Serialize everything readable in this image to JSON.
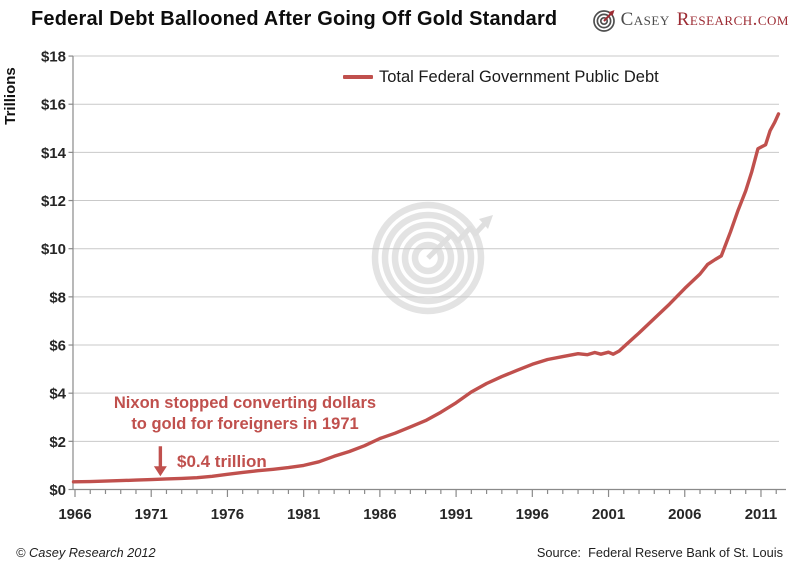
{
  "header": {
    "title": "Federal Debt Ballooned After Going Off Gold Standard",
    "logo": {
      "icon": "casey-spiral-logo",
      "brand_gray": "Casey",
      "brand_red": "Research.com",
      "gray_color": "#4b4b4b",
      "red_color": "#9c2b33"
    }
  },
  "footer": {
    "copyright": "© Casey Research 2012",
    "source": "Source:  Federal Reserve Bank of St. Louis"
  },
  "chart_data": {
    "type": "line",
    "title": "Federal Debt Ballooned After Going Off Gold Standard",
    "ylabel": "Trillions",
    "xlabel": "",
    "y_tick_prefix": "$",
    "y_ticks": [
      0,
      2,
      4,
      6,
      8,
      10,
      12,
      14,
      16,
      18
    ],
    "x_major_ticks": [
      1966,
      1971,
      1976,
      1981,
      1986,
      1991,
      1996,
      2001,
      2006,
      2011
    ],
    "minor_x_tick_every_years": 1,
    "xlim": [
      1965.9,
      2012.6
    ],
    "ylim": [
      0,
      18
    ],
    "grid": "horizontal",
    "gridline_color": "#c9c9c9",
    "axis_color": "#8a8a8a",
    "tick_label_color": "#262626",
    "legend_position": "top-center",
    "watermark": "casey-spiral-logo",
    "annotation": {
      "line1": "Nixon stopped converting dollars",
      "line2": "to gold for foreigners in 1971",
      "value_label": "$0.4 trillion",
      "color": "#C0504D",
      "arrow": "down-arrow",
      "arrow_tip": {
        "year": 1971.6,
        "value": 0.55
      }
    },
    "series": [
      {
        "name": "Total Federal Government Public Debt",
        "color": "#C0504D",
        "points": [
          [
            1965.9,
            0.32
          ],
          [
            1967,
            0.33
          ],
          [
            1968,
            0.35
          ],
          [
            1969,
            0.37
          ],
          [
            1970,
            0.39
          ],
          [
            1971,
            0.41
          ],
          [
            1972,
            0.44
          ],
          [
            1973,
            0.46
          ],
          [
            1974,
            0.49
          ],
          [
            1975,
            0.55
          ],
          [
            1976,
            0.63
          ],
          [
            1977,
            0.71
          ],
          [
            1978,
            0.78
          ],
          [
            1979,
            0.84
          ],
          [
            1980,
            0.91
          ],
          [
            1981,
            1.0
          ],
          [
            1982,
            1.15
          ],
          [
            1983,
            1.38
          ],
          [
            1984,
            1.58
          ],
          [
            1985,
            1.82
          ],
          [
            1986,
            2.12
          ],
          [
            1987,
            2.34
          ],
          [
            1988,
            2.6
          ],
          [
            1989,
            2.86
          ],
          [
            1990,
            3.21
          ],
          [
            1991,
            3.6
          ],
          [
            1992,
            4.05
          ],
          [
            1993,
            4.4
          ],
          [
            1994,
            4.69
          ],
          [
            1995,
            4.95
          ],
          [
            1996,
            5.2
          ],
          [
            1997,
            5.4
          ],
          [
            1998,
            5.52
          ],
          [
            1999,
            5.64
          ],
          [
            1999.6,
            5.6
          ],
          [
            2000.1,
            5.69
          ],
          [
            2000.5,
            5.62
          ],
          [
            2001,
            5.7
          ],
          [
            2001.3,
            5.62
          ],
          [
            2001.7,
            5.75
          ],
          [
            2002,
            5.93
          ],
          [
            2003,
            6.5
          ],
          [
            2004,
            7.1
          ],
          [
            2005,
            7.7
          ],
          [
            2006,
            8.35
          ],
          [
            2007,
            8.95
          ],
          [
            2007.5,
            9.35
          ],
          [
            2008,
            9.55
          ],
          [
            2008.4,
            9.7
          ],
          [
            2008.7,
            10.2
          ],
          [
            2009,
            10.7
          ],
          [
            2009.5,
            11.6
          ],
          [
            2010,
            12.4
          ],
          [
            2010.4,
            13.2
          ],
          [
            2010.8,
            14.15
          ],
          [
            2011.3,
            14.32
          ],
          [
            2011.6,
            14.9
          ],
          [
            2011.9,
            15.25
          ],
          [
            2012.15,
            15.6
          ]
        ]
      }
    ]
  }
}
